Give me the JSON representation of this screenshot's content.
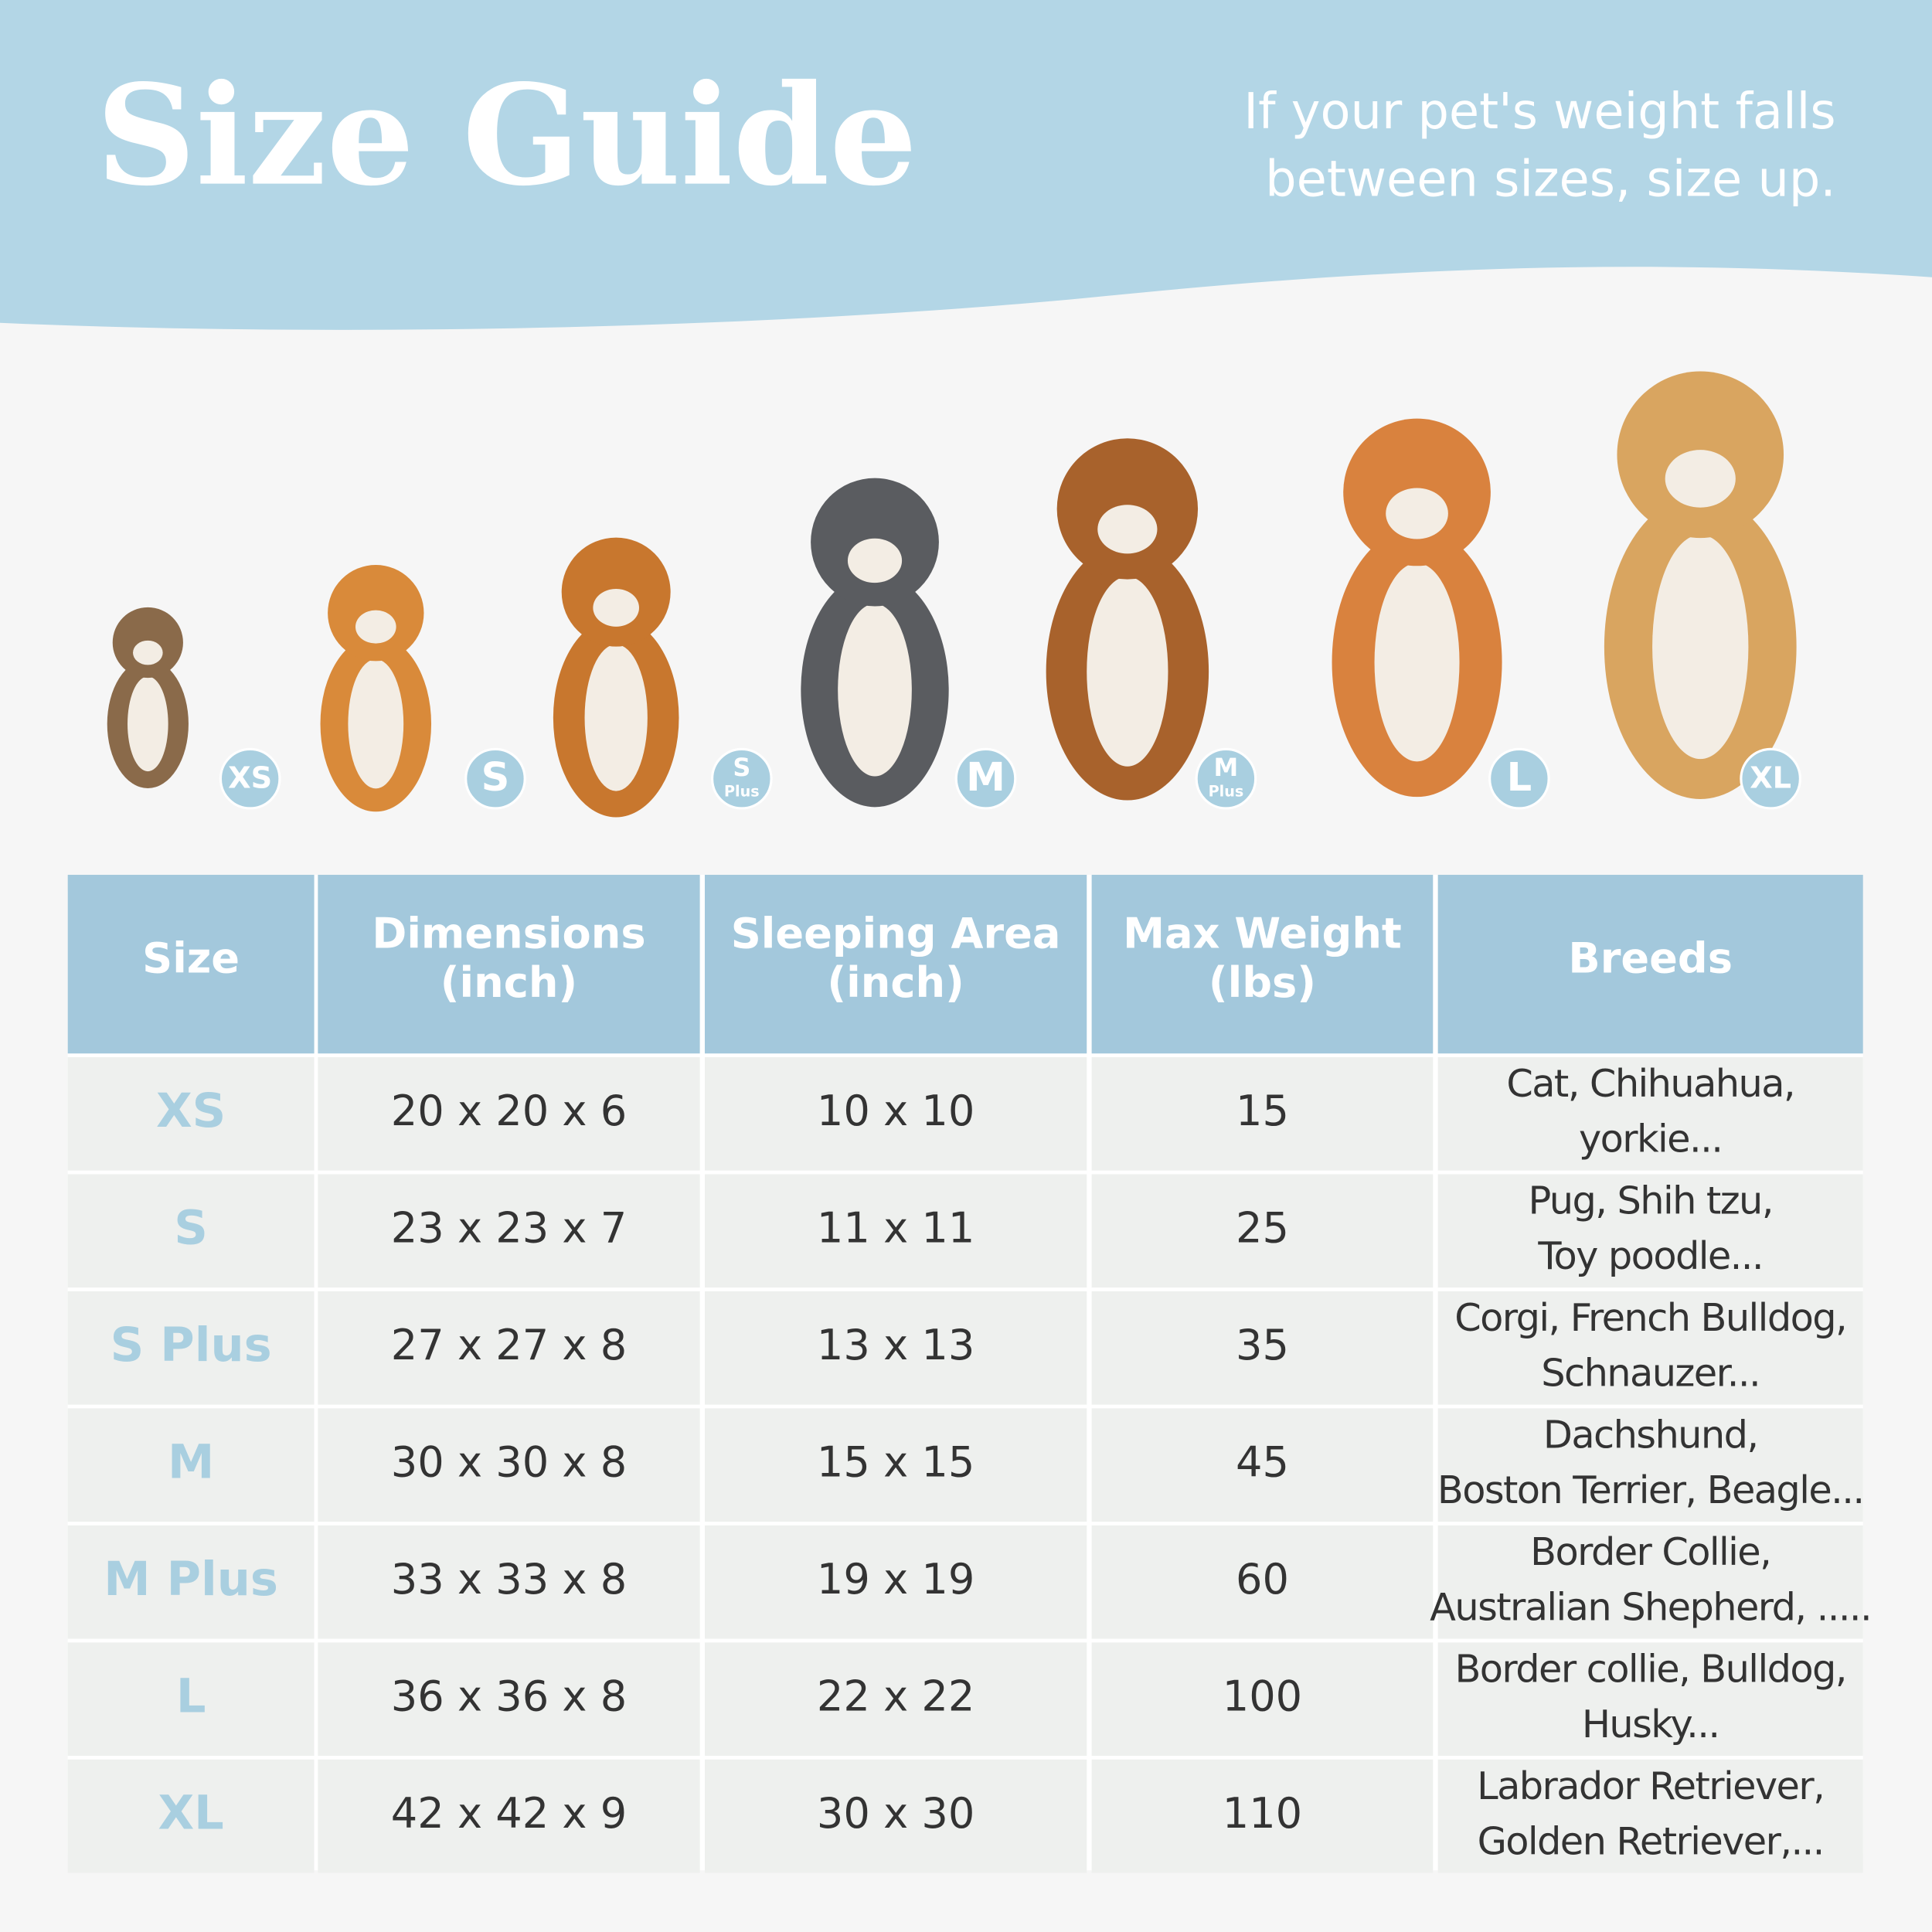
{
  "header": {
    "title": "Size Guide",
    "subtitle": [
      "If your pet's weight falls",
      "between sizes, size up."
    ]
  },
  "badges": [
    {
      "main": "XS"
    },
    {
      "main": "S"
    },
    {
      "main": "S",
      "sub": "Plus"
    },
    {
      "main": "M"
    },
    {
      "main": "M",
      "sub": "Plus"
    },
    {
      "main": "L"
    },
    {
      "main": "XL"
    }
  ],
  "table": {
    "columns": [
      [
        "Size"
      ],
      [
        "Dimensions",
        "(inch)"
      ],
      [
        "Sleeping Area",
        "(inch)"
      ],
      [
        "Max Weight",
        "(lbs)"
      ],
      [
        "Breeds"
      ]
    ],
    "rows": [
      [
        "XS",
        "20 x 20 x 6",
        "10 x 10",
        15,
        [
          "Cat, Chihuahua,",
          "yorkie..."
        ]
      ],
      [
        "S",
        "23 x 23 x 7",
        "11 x 11",
        25,
        [
          "Pug, Shih tzu,",
          "Toy poodle..."
        ]
      ],
      [
        "S Plus",
        "27 x 27 x 8",
        "13 x 13",
        35,
        [
          "Corgi, French Bulldog,",
          "Schnauzer..."
        ]
      ],
      [
        "M",
        "30 x 30 x 8",
        "15 x 15",
        45,
        [
          "Dachshund,",
          "Boston Terrier, Beagle..."
        ]
      ],
      [
        "M Plus",
        "33 x 33 x 8",
        "19 x 19",
        60,
        [
          "Border Collie,",
          "Australian Shepherd, ....."
        ]
      ],
      [
        "L",
        "36 x 36 x 8",
        "22 x 22",
        100,
        [
          "Border collie, Bulldog,",
          "Husky..."
        ]
      ],
      [
        "XL",
        "42 x 42 x 9",
        "30 x 30",
        110,
        [
          "Labrador Retriever,",
          "Golden Retriever,..."
        ]
      ]
    ]
  }
}
